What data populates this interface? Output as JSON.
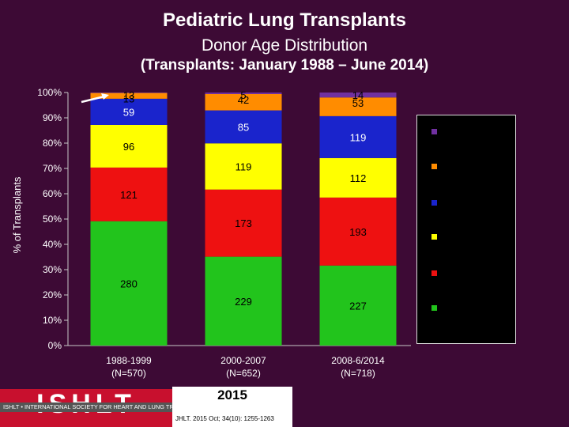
{
  "header": {
    "title": "Pediatric Lung Transplants",
    "subtitle": "Donor Age Distribution",
    "range": "(Transplants: January 1988 – June 2014)"
  },
  "chart_data": {
    "type": "stacked-bar-100",
    "ylabel": "% of Transplants",
    "ylim": [
      0,
      100
    ],
    "yticks": [
      "0%",
      "10%",
      "20%",
      "30%",
      "40%",
      "50%",
      "60%",
      "70%",
      "80%",
      "90%",
      "100%"
    ],
    "categories": [
      [
        "1988-1999",
        "(N=570)"
      ],
      [
        "2000-2007",
        "(N=652)"
      ],
      [
        "2008-6/2014",
        "(N=718)"
      ]
    ],
    "totals": [
      570,
      652,
      718
    ],
    "series": [
      {
        "name": "green",
        "color": "#22c41c",
        "values": [
          280,
          229,
          227
        ]
      },
      {
        "name": "red",
        "color": "#ee1111",
        "values": [
          121,
          173,
          193
        ]
      },
      {
        "name": "yellow",
        "color": "#ffff00",
        "values": [
          96,
          119,
          112
        ]
      },
      {
        "name": "blue",
        "color": "#1a24cc",
        "values": [
          59,
          85,
          119
        ]
      },
      {
        "name": "orange",
        "color": "#ff8c00",
        "values": [
          13,
          42,
          53
        ]
      },
      {
        "name": "purple",
        "color": "#7030a0",
        "values": [
          1,
          4,
          14
        ]
      }
    ],
    "top_labels": [
      "13",
      "5",
      "14"
    ],
    "legend": [
      "",
      "",
      "",
      "",
      "",
      ""
    ]
  },
  "footer": {
    "logo": "ISHLT",
    "society": "ISHLT • INTERNATIONAL SOCIETY FOR HEART AND LUNG TRANSPLANTATION",
    "year": "2015",
    "citation": "JHLT. 2015 Oct; 34(10): 1255-1263"
  }
}
